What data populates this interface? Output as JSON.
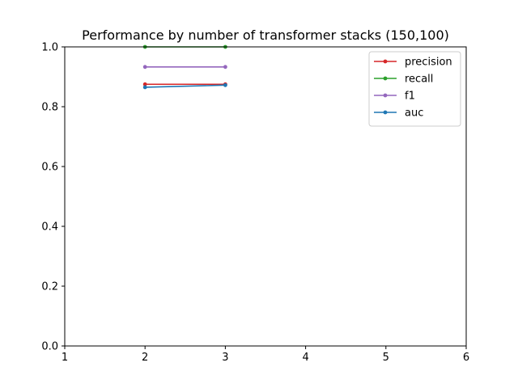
{
  "chart_data": {
    "type": "line",
    "title": "Performance by number of transformer stacks (150,100)",
    "xlabel": "",
    "ylabel": "",
    "xlim": [
      1,
      6
    ],
    "ylim": [
      0,
      1.0
    ],
    "xticks": [
      "1",
      "2",
      "3",
      "4",
      "5",
      "6"
    ],
    "yticks": [
      "0.0",
      "0.2",
      "0.4",
      "0.6",
      "0.8",
      "1.0"
    ],
    "grid": false,
    "legend_position": "top-right",
    "x": [
      2,
      3
    ],
    "series": [
      {
        "name": "precision",
        "color": "#d62728",
        "values": [
          0.875,
          0.875
        ]
      },
      {
        "name": "recall",
        "color": "#2ca02c",
        "values": [
          1.0,
          1.0
        ]
      },
      {
        "name": "f1",
        "color": "#9467bd",
        "values": [
          0.933,
          0.933
        ]
      },
      {
        "name": "auc",
        "color": "#1f77b4",
        "values": [
          0.865,
          0.872
        ]
      }
    ]
  }
}
